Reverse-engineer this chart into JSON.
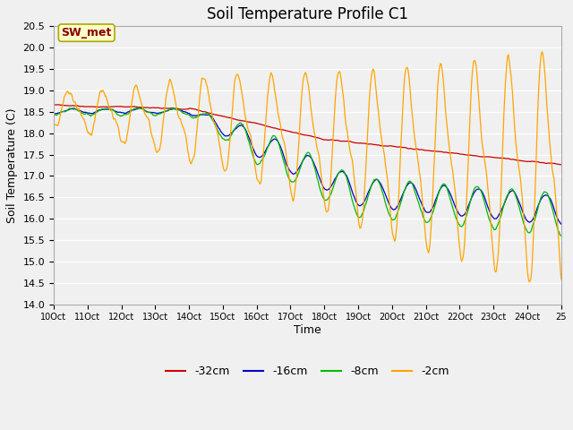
{
  "title": "Soil Temperature Profile C1",
  "xlabel": "Time",
  "ylabel": "Soil Temperature (C)",
  "ylim": [
    14.0,
    20.5
  ],
  "yticks": [
    14.0,
    14.5,
    15.0,
    15.5,
    16.0,
    16.5,
    17.0,
    17.5,
    18.0,
    18.5,
    19.0,
    19.5,
    20.0,
    20.5
  ],
  "line_colors": [
    "#cc0000",
    "#0000cc",
    "#00bb00",
    "#ffa500"
  ],
  "line_labels": [
    "-32cm",
    "-16cm",
    "-8cm",
    "-2cm"
  ],
  "plot_bg_color": "#f0f0f0",
  "fig_bg_color": "#f0f0f0",
  "grid_color": "#ffffff",
  "annotation_text": "SW_met",
  "annotation_color": "#880000",
  "annotation_bg": "#ffffcc",
  "annotation_border": "#aaaa00",
  "title_fontsize": 12,
  "axis_fontsize": 9,
  "tick_fontsize": 8,
  "legend_fontsize": 9
}
